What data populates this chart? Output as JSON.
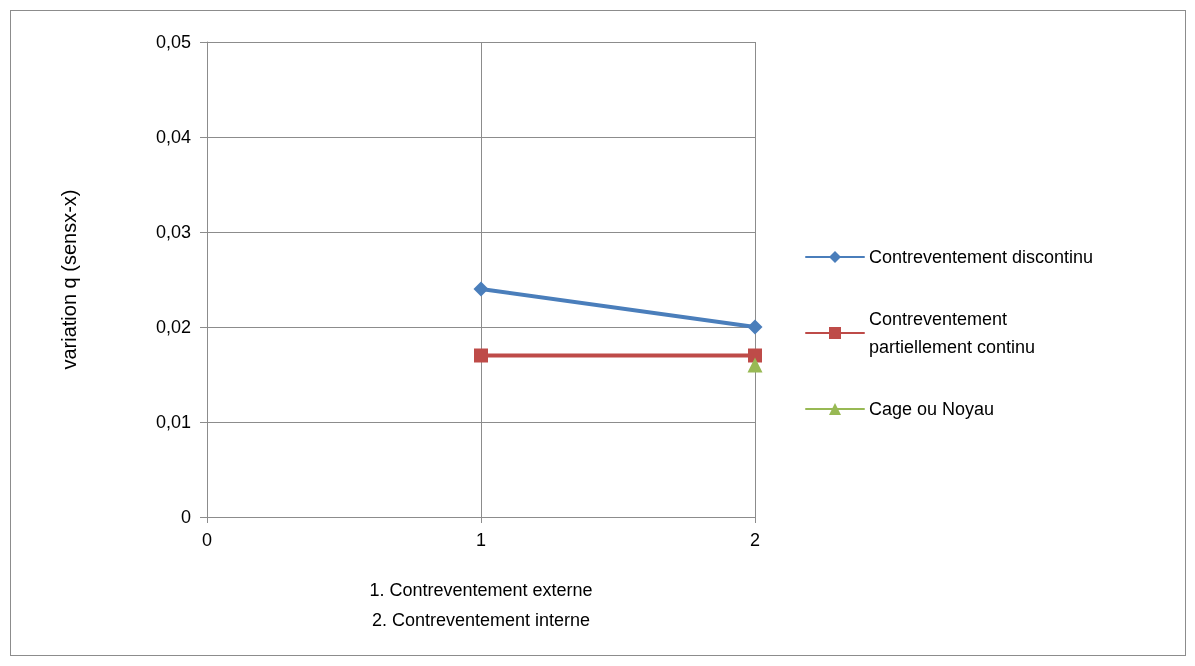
{
  "chart_data": {
    "type": "line",
    "ylabel": "variation q (sensx-x)",
    "xlabel": "1. Contreventement externe\n2. Contreventement interne",
    "x": [
      1,
      2
    ],
    "xlim": [
      0,
      2
    ],
    "xticks": [
      0,
      1,
      2
    ],
    "ylim": [
      0,
      0.05
    ],
    "yticks": [
      0,
      {
        "value": 0.01,
        "label": "0,01"
      },
      {
        "value": 0.02,
        "label": "0,02"
      },
      {
        "value": 0.03,
        "label": "0,03"
      },
      {
        "value": 0.04,
        "label": "0,04"
      },
      {
        "value": 0.05,
        "label": "0,05"
      }
    ],
    "grid": true,
    "legend": "right",
    "line_style": "solid",
    "series": [
      {
        "name": "Contreventement discontinu",
        "color": "#4a7ebb",
        "marker": "diamond",
        "values": [
          0.024,
          0.02
        ]
      },
      {
        "name": "Contreventement partiellement continu",
        "color": "#be4b48",
        "marker": "square",
        "values": [
          0.017,
          0.017
        ]
      },
      {
        "name": "Cage ou Noyau",
        "color": "#98b954",
        "marker": "triangle",
        "x": [
          2
        ],
        "values": [
          0.016
        ]
      }
    ]
  }
}
